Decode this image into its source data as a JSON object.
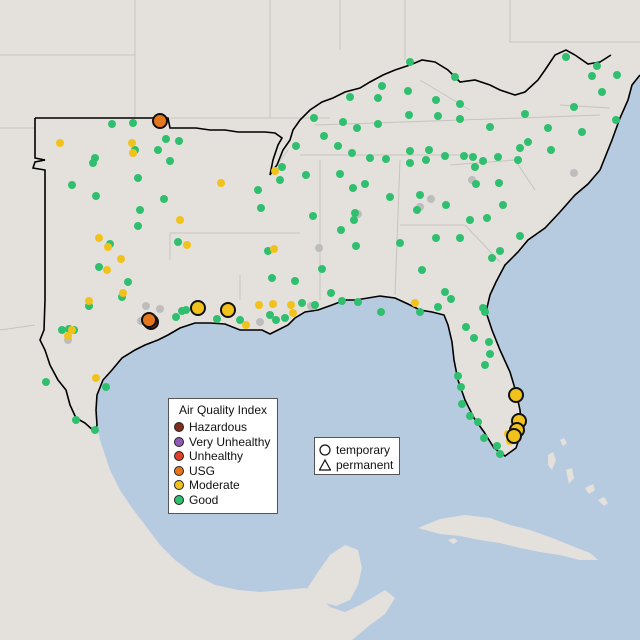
{
  "legend": {
    "title": "Air Quality Index",
    "items": [
      {
        "label": "Hazardous",
        "color": "#7e2d1e"
      },
      {
        "label": "Very Unhealthy",
        "color": "#8e5bb5"
      },
      {
        "label": "Unhealthy",
        "color": "#e0402a"
      },
      {
        "label": "USG",
        "color": "#e2781b"
      },
      {
        "label": "Moderate",
        "color": "#f1c21b"
      },
      {
        "label": "Good",
        "color": "#2fbf6f"
      }
    ]
  },
  "shape_legend": {
    "items": [
      {
        "label": "temporary",
        "shape": "circle"
      },
      {
        "label": "permanent",
        "shape": "triangle"
      }
    ]
  },
  "colors": {
    "water": "#b7cbe0",
    "land": "#e4e1dc",
    "state_border": "#c7c4c0",
    "region_outline": "#000000",
    "no_data": "#bdbdbd"
  }
}
